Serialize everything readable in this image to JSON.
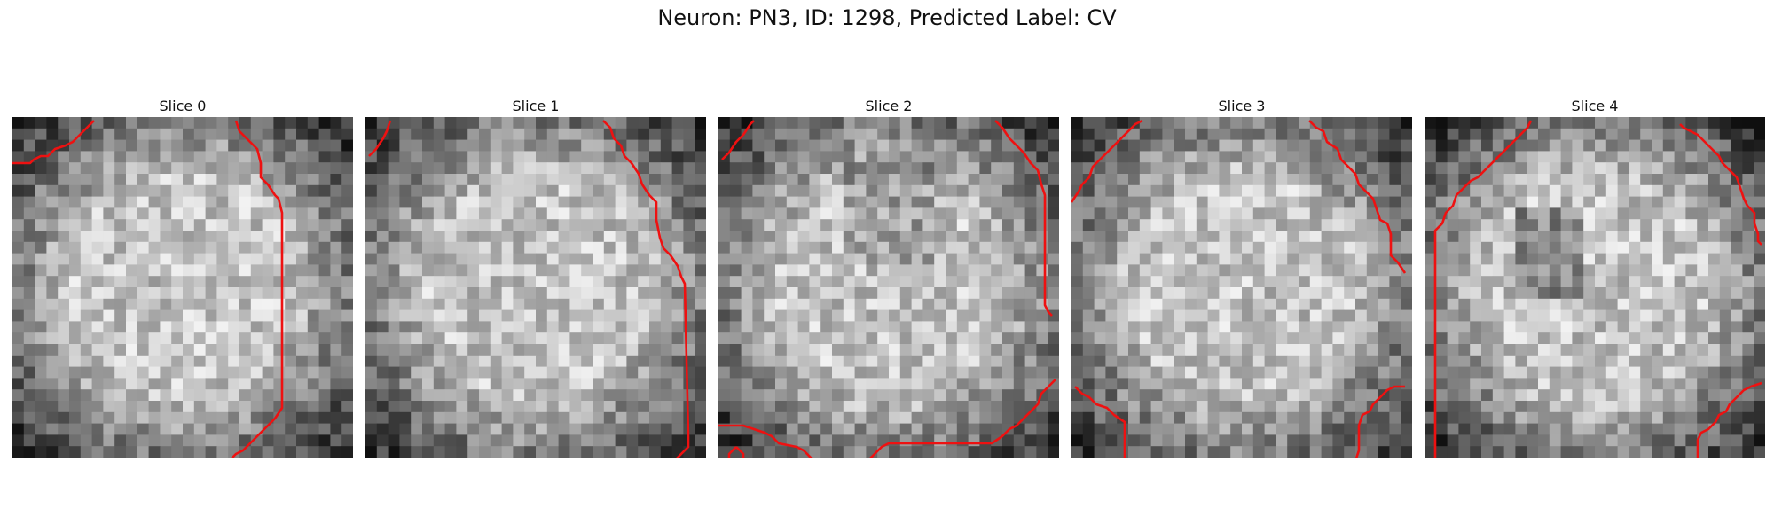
{
  "figure": {
    "title": "Neuron: PN3, ID: 1298, Predicted Label: CV"
  },
  "colors": {
    "contour": "#ee1111"
  },
  "panels": [
    {
      "title": "Slice 0",
      "contours": [
        [
          [
            0,
            6.5
          ],
          [
            1.5,
            6.5
          ],
          [
            2.5,
            6.5
          ],
          [
            3,
            6
          ],
          [
            4,
            5.5
          ],
          [
            5,
            5.5
          ],
          [
            6,
            4.5
          ],
          [
            7.5,
            4
          ],
          [
            8.5,
            3.5
          ],
          [
            9.5,
            2.5
          ],
          [
            10.5,
            1.5
          ],
          [
            11.5,
            0.5
          ]
        ],
        [
          [
            31.5,
            0.5
          ],
          [
            32,
            2
          ],
          [
            33.5,
            3.5
          ],
          [
            34.5,
            4.5
          ],
          [
            35,
            6.5
          ],
          [
            35,
            8.5
          ],
          [
            36,
            9.5
          ],
          [
            37,
            11
          ],
          [
            37.5,
            11.5
          ],
          [
            38,
            13.5
          ],
          [
            38,
            28
          ],
          [
            38,
            41
          ],
          [
            37,
            42.5
          ],
          [
            36,
            43.5
          ],
          [
            35,
            44.5
          ],
          [
            34.5,
            45
          ],
          [
            33.5,
            46
          ],
          [
            32.5,
            47
          ],
          [
            31.5,
            47.5
          ],
          [
            30.5,
            48.5
          ],
          [
            29,
            49
          ],
          [
            28.5,
            50
          ],
          [
            27,
            50.5
          ],
          [
            25.5,
            51.5
          ],
          [
            24.5,
            52
          ],
          [
            23.5,
            53
          ],
          [
            22.5,
            53.5
          ],
          [
            21.5,
            55
          ],
          [
            20.5,
            56
          ]
        ],
        [
          [
            1,
            48.5
          ],
          [
            1.5,
            50
          ],
          [
            2,
            51.5
          ],
          [
            3,
            52.5
          ],
          [
            3.5,
            53.5
          ],
          [
            4.5,
            54
          ],
          [
            5,
            55
          ],
          [
            6.5,
            55.5
          ],
          [
            7,
            56
          ]
        ]
      ],
      "seed": 11
    },
    {
      "title": "Slice 1",
      "contours": [
        [
          [
            0.5,
            5.5
          ],
          [
            1.5,
            4.5
          ],
          [
            2.5,
            3
          ],
          [
            3,
            2
          ],
          [
            3.5,
            0.5
          ]
        ],
        [
          [
            33.5,
            0.5
          ],
          [
            34.5,
            1.5
          ],
          [
            35,
            3
          ],
          [
            36,
            4
          ],
          [
            36.5,
            5.5
          ],
          [
            37.5,
            6.5
          ],
          [
            38.5,
            8
          ],
          [
            39,
            9.5
          ],
          [
            40,
            11
          ],
          [
            41,
            12
          ],
          [
            41,
            14.5
          ],
          [
            41.5,
            17
          ],
          [
            42,
            18.5
          ],
          [
            43,
            19.5
          ],
          [
            44,
            21
          ],
          [
            44.5,
            22.5
          ],
          [
            45,
            23.5
          ],
          [
            45.5,
            45
          ],
          [
            45.5,
            46.5
          ],
          [
            44.5,
            47.5
          ],
          [
            43.5,
            48.5
          ],
          [
            42.5,
            49.5
          ],
          [
            41.5,
            50.5
          ],
          [
            40.5,
            51.5
          ],
          [
            39.5,
            52.5
          ],
          [
            38.5,
            53
          ],
          [
            37.5,
            54
          ],
          [
            36.5,
            55
          ],
          [
            35.5,
            55.5
          ],
          [
            34.5,
            56
          ]
        ],
        [
          [
            0.5,
            48.5
          ],
          [
            1,
            50
          ],
          [
            2.5,
            51.5
          ],
          [
            3,
            53.5
          ],
          [
            3.5,
            55.5
          ]
        ]
      ],
      "seed": 29
    },
    {
      "title": "Slice 2",
      "contours": [
        [
          [
            0.5,
            6
          ],
          [
            1.5,
            5
          ],
          [
            2.5,
            3.5
          ],
          [
            3.5,
            2.5
          ],
          [
            4.5,
            1
          ],
          [
            5,
            0.5
          ]
        ],
        [
          [
            39,
            0.5
          ],
          [
            40,
            1.5
          ],
          [
            41,
            3
          ],
          [
            42,
            4
          ],
          [
            43,
            5
          ],
          [
            44,
            6.5
          ],
          [
            45,
            7.5
          ],
          [
            45.5,
            9.5
          ],
          [
            46,
            11
          ],
          [
            46,
            13.5
          ],
          [
            46,
            22
          ],
          [
            46,
            26.5
          ],
          [
            46.5,
            27.5
          ],
          [
            47,
            28
          ]
        ],
        [
          [
            0,
            43.5
          ],
          [
            1.5,
            43.5
          ],
          [
            3.5,
            43.5
          ],
          [
            5,
            44
          ],
          [
            6.5,
            44.5
          ],
          [
            7.5,
            45
          ],
          [
            8.5,
            46
          ],
          [
            11,
            46.5
          ],
          [
            12,
            47
          ],
          [
            13,
            48
          ],
          [
            14,
            48.5
          ],
          [
            19,
            48.5
          ],
          [
            21,
            48.5
          ],
          [
            22,
            47.5
          ],
          [
            23,
            46.5
          ],
          [
            24,
            46
          ],
          [
            30.5,
            46
          ],
          [
            37,
            46
          ],
          [
            38.5,
            46
          ],
          [
            40,
            45
          ],
          [
            41,
            44
          ],
          [
            42,
            43.5
          ],
          [
            43,
            42.5
          ],
          [
            44,
            41.5
          ],
          [
            45,
            40.5
          ],
          [
            45.5,
            39
          ],
          [
            46,
            38.5
          ],
          [
            47,
            37.5
          ],
          [
            47.5,
            37
          ]
        ],
        [
          [
            2.5,
            46.5
          ],
          [
            1.5,
            47.5
          ],
          [
            1.5,
            49
          ],
          [
            2.5,
            50
          ],
          [
            3.5,
            49
          ],
          [
            3.5,
            47.5
          ],
          [
            2.5,
            46.5
          ]
        ]
      ],
      "seed": 47
    },
    {
      "title": "Slice 3",
      "contours": [
        [
          [
            0,
            12
          ],
          [
            1,
            10.5
          ],
          [
            1.5,
            9.5
          ],
          [
            2.5,
            8.5
          ],
          [
            3,
            7
          ],
          [
            4,
            6
          ],
          [
            5,
            5
          ],
          [
            6,
            4
          ],
          [
            7,
            3
          ],
          [
            8,
            2
          ],
          [
            9,
            1
          ],
          [
            10,
            0.5
          ]
        ],
        [
          [
            33.5,
            0.5
          ],
          [
            34.5,
            1.5
          ],
          [
            35.5,
            2
          ],
          [
            36,
            3.5
          ],
          [
            37.5,
            4.5
          ],
          [
            38,
            6
          ],
          [
            39,
            7
          ],
          [
            40,
            8
          ],
          [
            40.5,
            9.5
          ],
          [
            41.5,
            10.5
          ],
          [
            42.5,
            11.5
          ],
          [
            43,
            13
          ],
          [
            43.5,
            14.5
          ],
          [
            44.5,
            15
          ],
          [
            45,
            16.5
          ],
          [
            45,
            19.5
          ],
          [
            46,
            20.5
          ],
          [
            47,
            22
          ]
        ],
        [
          [
            0.5,
            38
          ],
          [
            1.5,
            39
          ],
          [
            2.5,
            39.5
          ],
          [
            3.5,
            40.5
          ],
          [
            5,
            41
          ],
          [
            6,
            42
          ],
          [
            7.5,
            43
          ],
          [
            7.5,
            56
          ]
        ],
        [
          [
            47,
            38
          ],
          [
            45.5,
            38
          ],
          [
            44.5,
            38.5
          ],
          [
            43.5,
            39.5
          ],
          [
            42.5,
            40.5
          ],
          [
            42,
            41.5
          ],
          [
            41,
            42
          ],
          [
            40.5,
            43.5
          ],
          [
            40.5,
            47
          ],
          [
            40,
            48.5
          ],
          [
            39.5,
            50
          ],
          [
            38.5,
            51.5
          ],
          [
            38,
            52.5
          ],
          [
            37.5,
            53.5
          ],
          [
            36.5,
            54.5
          ],
          [
            35.5,
            55.5
          ]
        ]
      ],
      "seed": 73
    },
    {
      "title": "Slice 4",
      "contours": [
        [
          [
            1.5,
            48.5
          ],
          [
            1.5,
            16
          ],
          [
            2.5,
            15
          ],
          [
            3,
            13.5
          ],
          [
            4,
            12.5
          ],
          [
            4.5,
            11
          ],
          [
            5.5,
            10
          ],
          [
            6.5,
            9
          ],
          [
            7.5,
            8.5
          ],
          [
            8.5,
            7.5
          ],
          [
            9.5,
            6.5
          ],
          [
            10.5,
            5.5
          ],
          [
            11.5,
            4.5
          ],
          [
            12.5,
            3.5
          ],
          [
            13.5,
            2.5
          ],
          [
            14.5,
            1.5
          ],
          [
            15,
            0.5
          ]
        ],
        [
          [
            1.5,
            48.5
          ],
          [
            2,
            50
          ],
          [
            3,
            50.5
          ],
          [
            3.5,
            51.5
          ],
          [
            4.5,
            52
          ],
          [
            5,
            53
          ],
          [
            6,
            54
          ],
          [
            6.5,
            55
          ],
          [
            7,
            56
          ]
        ],
        [
          [
            36,
            1
          ],
          [
            36.5,
            1.5
          ],
          [
            37.5,
            2
          ],
          [
            38.5,
            2.5
          ],
          [
            39.5,
            3.5
          ],
          [
            40.5,
            4.5
          ],
          [
            41.5,
            5.5
          ],
          [
            42,
            6.5
          ],
          [
            43,
            7.5
          ],
          [
            44,
            8.5
          ],
          [
            44.5,
            10
          ],
          [
            45,
            11.5
          ],
          [
            45.5,
            12.5
          ],
          [
            46.5,
            13.5
          ],
          [
            46.5,
            14.5
          ],
          [
            46.5,
            15
          ],
          [
            47,
            16.5
          ],
          [
            47,
            17.5
          ],
          [
            47.5,
            18
          ]
        ],
        [
          [
            47.5,
            37.5
          ],
          [
            46,
            38
          ],
          [
            45,
            38.5
          ],
          [
            44,
            39.5
          ],
          [
            43,
            40.5
          ],
          [
            42.5,
            41.5
          ],
          [
            41.5,
            42
          ],
          [
            41,
            43
          ],
          [
            40,
            44
          ],
          [
            39,
            44.5
          ],
          [
            38.5,
            45.5
          ],
          [
            38.5,
            47
          ],
          [
            38.5,
            52
          ],
          [
            38.5,
            56
          ]
        ]
      ],
      "seed": 97
    }
  ]
}
